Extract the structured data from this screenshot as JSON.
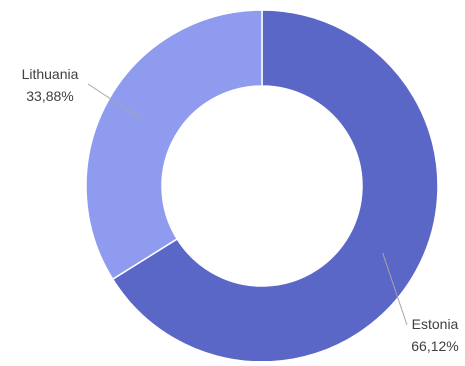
{
  "chart_data": {
    "type": "pie",
    "variant": "donut",
    "title": "",
    "slices": [
      {
        "label": "Estonia",
        "value": 66.12,
        "value_text": "66,12%",
        "color": "#5b67c7"
      },
      {
        "label": "Lithuania",
        "value": 33.88,
        "value_text": "33,88%",
        "color": "#8f9bee"
      }
    ],
    "legend": "none",
    "leader_line_color": "#a6a6a6"
  }
}
